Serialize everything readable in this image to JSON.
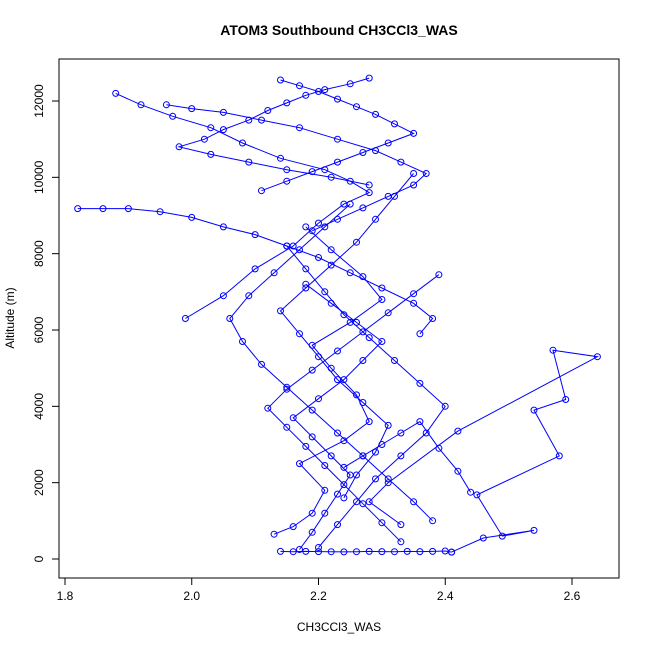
{
  "chart_data": {
    "type": "line",
    "title": "ATOM3 Southbound CH3CCl3_WAS",
    "xlabel": "CH3CCl3_WAS",
    "ylabel": "Altitude (m)",
    "xlim": [
      1.8,
      2.65
    ],
    "ylim": [
      0,
      12750
    ],
    "xticks": [
      "1.8",
      "2.0",
      "2.2",
      "2.4",
      "2.6"
    ],
    "yticks": [
      "0",
      "2000",
      "4000",
      "6000",
      "8000",
      "10000",
      "12000"
    ],
    "grid": false,
    "legend": "none",
    "marker": "open-circle",
    "color": "#0000ff",
    "series": [
      {
        "x": [
          2.14,
          2.16,
          2.18,
          2.2,
          2.22,
          2.24,
          2.26,
          2.28,
          2.3,
          2.32,
          2.34,
          2.36,
          2.38,
          2.4,
          2.41
        ],
        "y": [
          200,
          190,
          200,
          195,
          190,
          185,
          190,
          200,
          195,
          190,
          200,
          195,
          200,
          210,
          180
        ]
      },
      {
        "x": [
          2.41,
          2.46,
          2.54,
          2.49,
          2.45,
          2.58,
          2.54,
          2.59,
          2.57,
          2.64,
          2.42,
          2.31,
          2.28,
          2.33
        ],
        "y": [
          180,
          550,
          750,
          600,
          1680,
          2700,
          3900,
          4180,
          5470,
          5300,
          3350,
          2000,
          1500,
          900
        ]
      },
      {
        "x": [
          2.13,
          2.16,
          2.19,
          2.21,
          2.17,
          2.24,
          2.28,
          2.26,
          2.22,
          2.19,
          2.25,
          2.3,
          2.27,
          2.22,
          2.18
        ],
        "y": [
          650,
          850,
          1200,
          1800,
          2500,
          3100,
          3600,
          4300,
          5000,
          5600,
          6200,
          6800,
          7400,
          8100,
          8700
        ]
      },
      {
        "x": [
          1.99,
          2.05,
          2.1,
          2.16,
          2.2,
          2.24,
          2.28,
          2.25,
          2.21,
          2.14,
          2.08,
          2.03,
          1.97,
          1.92,
          1.88
        ],
        "y": [
          6300,
          6900,
          7600,
          8200,
          8800,
          9300,
          9600,
          9900,
          10200,
          10500,
          10900,
          11300,
          11600,
          11900,
          12200
        ]
      },
      {
        "x": [
          1.82,
          1.86,
          1.9,
          1.95,
          2.0,
          2.05,
          2.1,
          2.15,
          2.2,
          2.25,
          2.3,
          2.35,
          2.38,
          2.36
        ],
        "y": [
          9180,
          9180,
          9180,
          9100,
          8950,
          8700,
          8500,
          8200,
          7900,
          7500,
          7100,
          6700,
          6300,
          5900
        ]
      },
      {
        "x": [
          2.28,
          2.25,
          2.21,
          2.18,
          2.15,
          2.12,
          2.09,
          2.05,
          2.02,
          1.98,
          2.03,
          2.09,
          2.15,
          2.22,
          2.28
        ],
        "y": [
          12600,
          12450,
          12300,
          12150,
          11950,
          11750,
          11500,
          11250,
          11000,
          10800,
          10600,
          10400,
          10200,
          10000,
          9800
        ]
      },
      {
        "x": [
          2.24,
          2.26,
          2.29,
          2.31,
          2.27,
          2.23,
          2.2,
          2.17,
          2.14,
          2.18,
          2.22,
          2.26,
          2.29,
          2.32,
          2.35
        ],
        "y": [
          1600,
          2200,
          2800,
          3500,
          4100,
          4700,
          5300,
          5900,
          6500,
          7100,
          7700,
          8300,
          8900,
          9500,
          10100
        ]
      },
      {
        "x": [
          2.38,
          2.35,
          2.31,
          2.27,
          2.23,
          2.19,
          2.15,
          2.11,
          2.08,
          2.06,
          2.09,
          2.13,
          2.17,
          2.21,
          2.25
        ],
        "y": [
          1000,
          1500,
          2100,
          2700,
          3300,
          3900,
          4500,
          5100,
          5700,
          6300,
          6900,
          7500,
          8100,
          8700,
          9300
        ]
      },
      {
        "x": [
          2.2,
          2.23,
          2.26,
          2.29,
          2.33,
          2.37,
          2.4,
          2.36,
          2.32,
          2.28,
          2.24,
          2.21,
          2.18,
          2.15
        ],
        "y": [
          300,
          900,
          1500,
          2100,
          2700,
          3300,
          4000,
          4600,
          5200,
          5800,
          6400,
          7000,
          7600,
          8200
        ]
      },
      {
        "x": [
          1.96,
          2.0,
          2.05,
          2.11,
          2.17,
          2.23,
          2.29,
          2.33,
          2.37,
          2.35,
          2.31,
          2.27,
          2.23,
          2.19
        ],
        "y": [
          11900,
          11800,
          11700,
          11500,
          11300,
          11000,
          10700,
          10400,
          10100,
          9800,
          9500,
          9200,
          8900,
          8600
        ]
      },
      {
        "x": [
          2.17,
          2.19,
          2.21,
          2.23,
          2.25,
          2.22,
          2.19,
          2.16,
          2.2,
          2.24,
          2.27,
          2.3,
          2.26,
          2.22,
          2.18
        ],
        "y": [
          250,
          700,
          1200,
          1700,
          2200,
          2700,
          3200,
          3700,
          4200,
          4700,
          5200,
          5700,
          6200,
          6700,
          7200
        ]
      },
      {
        "x": [
          2.33,
          2.3,
          2.27,
          2.24,
          2.21,
          2.18,
          2.15,
          2.12,
          2.15,
          2.19,
          2.23,
          2.27,
          2.31,
          2.35,
          2.39
        ],
        "y": [
          450,
          950,
          1450,
          1950,
          2450,
          2950,
          3450,
          3950,
          4450,
          4950,
          5450,
          5950,
          6450,
          6950,
          7450
        ]
      },
      {
        "x": [
          2.24,
          2.27,
          2.3,
          2.33,
          2.36,
          2.39,
          2.42,
          2.44
        ],
        "y": [
          2400,
          2700,
          3000,
          3300,
          3600,
          2900,
          2300,
          1750
        ]
      },
      {
        "x": [
          2.14,
          2.17,
          2.2,
          2.23,
          2.26,
          2.29,
          2.32,
          2.35,
          2.31,
          2.27,
          2.23,
          2.19,
          2.15,
          2.11
        ],
        "y": [
          12550,
          12400,
          12250,
          12050,
          11850,
          11650,
          11400,
          11150,
          10900,
          10650,
          10400,
          10150,
          9900,
          9650
        ]
      }
    ]
  }
}
